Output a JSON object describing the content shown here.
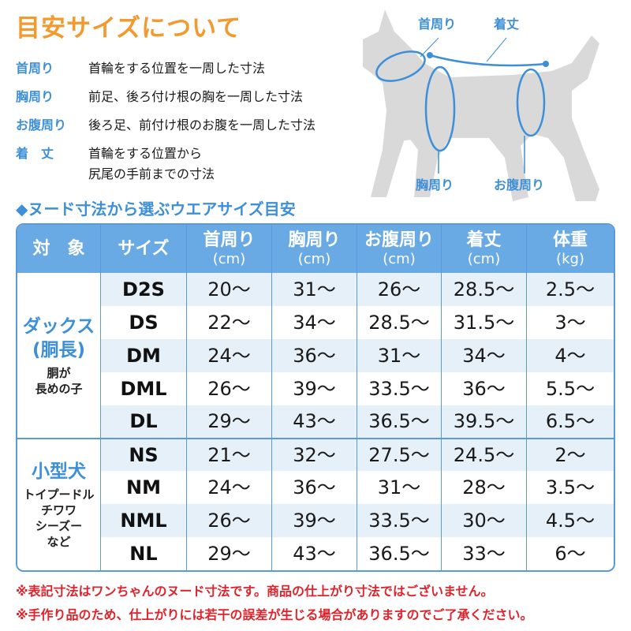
{
  "title": "目安サイズについて",
  "definitions": [
    {
      "label": "首周り",
      "desc": "首輪をする位置を一周した寸法"
    },
    {
      "label": "胸周り",
      "desc": "前足、後ろ付け根の胸を一周した寸法"
    },
    {
      "label": "お腹周り",
      "desc": "後ろ足、前付け根のお腹を一周した寸法"
    },
    {
      "label": "着　丈",
      "desc": "首輪をする位置から\n尻尾の手前までの寸法"
    }
  ],
  "diagram": {
    "labels": {
      "neck": "首周り",
      "length": "着丈",
      "chest": "胸周り",
      "belly": "お腹周り"
    },
    "colors": {
      "dog": "#d9d9d9",
      "line": "#3d8fd8"
    }
  },
  "section_title": "◆ヌード寸法から選ぶウエアサイズ目安",
  "table": {
    "headers": [
      {
        "label": "対　象",
        "unit": ""
      },
      {
        "label": "サイズ",
        "unit": ""
      },
      {
        "label": "首周り",
        "unit": "(cm)"
      },
      {
        "label": "胸周り",
        "unit": "(cm)"
      },
      {
        "label": "お腹周り",
        "unit": "(cm)"
      },
      {
        "label": "着丈",
        "unit": "(cm)"
      },
      {
        "label": "体重",
        "unit": "(kg)"
      }
    ],
    "groups": [
      {
        "name": "ダックス\n(胴長)",
        "sub": "胴が\n長めの子",
        "rows": [
          [
            "D2S",
            "20〜",
            "31〜",
            "26〜",
            "28.5〜",
            "2.5〜"
          ],
          [
            "DS",
            "22〜",
            "34〜",
            "28.5〜",
            "31.5〜",
            "3〜"
          ],
          [
            "DM",
            "24〜",
            "36〜",
            "31〜",
            "34〜",
            "4〜"
          ],
          [
            "DML",
            "26〜",
            "39〜",
            "33.5〜",
            "36〜",
            "5.5〜"
          ],
          [
            "DL",
            "29〜",
            "43〜",
            "36.5〜",
            "39.5〜",
            "6.5〜"
          ]
        ]
      },
      {
        "name": "小型犬",
        "sub": "トイプードル\nチワワ\nシーズー\nなど",
        "rows": [
          [
            "NS",
            "21〜",
            "32〜",
            "27.5〜",
            "24.5〜",
            "2〜"
          ],
          [
            "NM",
            "24〜",
            "36〜",
            "31〜",
            "28〜",
            "3.5〜"
          ],
          [
            "NML",
            "26〜",
            "39〜",
            "33.5〜",
            "30〜",
            "4.5〜"
          ],
          [
            "NL",
            "29〜",
            "43〜",
            "36.5〜",
            "33〜",
            "6〜"
          ]
        ]
      }
    ]
  },
  "notes": [
    "※表記寸法はワンちゃんのヌード寸法です。商品の仕上がり寸法ではございません。",
    "※手作り品のため、仕上がりには若干の誤差が生じる場合がありますのでご了承ください。"
  ],
  "colors": {
    "title": "#f39a2e",
    "accent": "#3d8fd8",
    "header_bg": "#6aaae4",
    "stripe": "#e6f0f9",
    "note": "#e0232a"
  }
}
